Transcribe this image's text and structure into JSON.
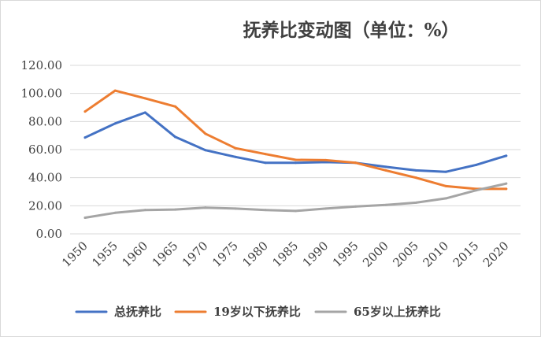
{
  "chart_data": {
    "type": "line",
    "title": "抚养比变动图（单位：%）",
    "x": [
      "1950",
      "1955",
      "1960",
      "1965",
      "1970",
      "1975",
      "1980",
      "1985",
      "1990",
      "1995",
      "2000",
      "2005",
      "2010",
      "2015",
      "2020"
    ],
    "ylim": [
      0,
      120
    ],
    "yticks": [
      "0.00",
      "20.00",
      "40.00",
      "60.00",
      "80.00",
      "100.00",
      "120.00"
    ],
    "grid": true,
    "legend_position": "bottom",
    "series": [
      {
        "name": "总抚养比",
        "color": "#4472c4",
        "values": [
          68.6,
          78.6,
          86.4,
          69.0,
          59.6,
          54.8,
          50.6,
          50.6,
          51.1,
          50.6,
          47.7,
          45.2,
          44.2,
          49.1,
          55.6
        ]
      },
      {
        "name": "19岁以下抚养比",
        "color": "#ed7d31",
        "values": [
          87.1,
          102.0,
          96.5,
          90.7,
          71.3,
          61.0,
          56.8,
          52.7,
          52.5,
          50.6,
          45.2,
          40.0,
          34.0,
          32.0,
          32.0
        ]
      },
      {
        "name": "65岁以上抚养比",
        "color": "#a5a5a5",
        "values": [
          11.5,
          15.0,
          17.0,
          17.3,
          18.7,
          18.0,
          17.0,
          16.3,
          18.0,
          19.5,
          20.6,
          22.2,
          25.3,
          31.0,
          35.8
        ]
      }
    ]
  }
}
